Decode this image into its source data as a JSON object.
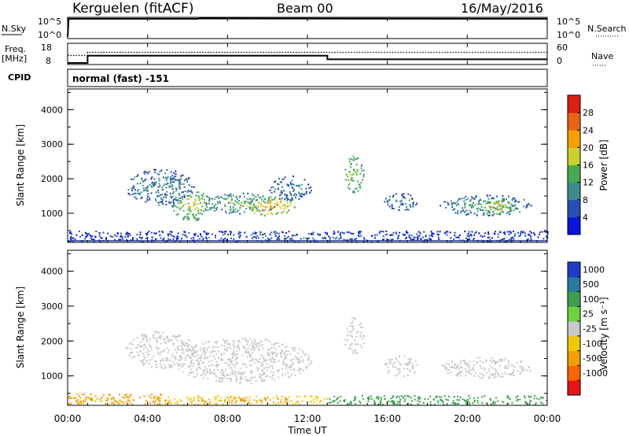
{
  "header": {
    "station": "Kerguelen (fitACF)",
    "beam": "Beam 00",
    "date": "16/May/2016"
  },
  "sky_panel": {
    "left_label": "N.Sky",
    "left_ticks": [
      "10^5",
      "10^0"
    ],
    "right_ticks": [
      "10^5",
      "10^0"
    ],
    "right_label": "N.Search"
  },
  "freq_panel": {
    "left_label_1": "Freq.",
    "left_label_2": "[MHz]",
    "left_ticks": [
      "18",
      "8"
    ],
    "right_ticks": [
      "60",
      "0"
    ],
    "right_label": "Nave"
  },
  "cpid_panel": {
    "label": "CPID",
    "program": "normal (fast) -151"
  },
  "time_axis": {
    "label": "Time UT",
    "ticks": [
      "00:00",
      "04:00",
      "08:00",
      "12:00",
      "16:00",
      "20:00",
      "00:00"
    ]
  },
  "range_axis": {
    "label": "Slant Range [km]",
    "ticks": [
      "1000",
      "2000",
      "3000",
      "4000"
    ]
  },
  "power_colorbar": {
    "label": "Power [dB]",
    "ticks": [
      "4",
      "8",
      "12",
      "16",
      "20",
      "24",
      "28"
    ],
    "colors": [
      "#0a14dc",
      "#2850b4",
      "#3c8c8c",
      "#46aa50",
      "#c8d228",
      "#f5a000",
      "#e66414",
      "#dc1e14"
    ]
  },
  "velocity_colorbar": {
    "label": "Velocity [m s⁻¹]",
    "ticks": [
      "1000",
      "500",
      "100",
      "25",
      "-25",
      "-100",
      "-500",
      "-1000"
    ],
    "colors": [
      "#1e3cc8",
      "#2878a0",
      "#3ca050",
      "#6ed23c",
      "#c8c8c8",
      "#f0c800",
      "#f0a000",
      "#ff6400",
      "#e61414"
    ]
  },
  "chart_data": [
    {
      "type": "line",
      "title": "N.Sky / N.Search",
      "x_unit": "hours UT",
      "x_range": [
        0,
        24
      ],
      "series": [
        {
          "name": "N.Sky",
          "x": [
            0,
            0.05,
            6.5,
            6.6,
            24
          ],
          "y_log10": [
            0,
            5,
            5,
            5.1,
            5
          ]
        }
      ]
    },
    {
      "type": "line",
      "title": "Freq. / Nave",
      "x_unit": "hours UT",
      "x_range": [
        0,
        24
      ],
      "freq_range_mhz": [
        8,
        18
      ],
      "nave_range": [
        0,
        60
      ],
      "series": [
        {
          "name": "Freq.",
          "x": [
            0,
            1.0,
            1.0,
            13.0,
            13.0,
            24
          ],
          "y": [
            8.0,
            8.0,
            12.0,
            12.0,
            10.0,
            10.0
          ]
        },
        {
          "name": "Nave",
          "x": [
            0,
            1.0,
            1.0,
            13.0,
            13.0,
            24
          ],
          "y": [
            25,
            25,
            35,
            35,
            35,
            35
          ]
        }
      ]
    },
    {
      "type": "heatmap",
      "title": "Power",
      "x_unit": "hours UT",
      "x_range": [
        0,
        24
      ],
      "y_unit": "km",
      "y_range": [
        180,
        4600
      ],
      "color_range_db": [
        0,
        32
      ],
      "regions": [
        {
          "t0": 2.9,
          "t1": 6.3,
          "r0": 1250,
          "r1": 2300,
          "value": 10
        },
        {
          "t0": 5.2,
          "t1": 7.2,
          "r0": 800,
          "r1": 1700,
          "value": 18
        },
        {
          "t0": 6.8,
          "t1": 10.5,
          "r0": 1000,
          "r1": 1600,
          "value": 14
        },
        {
          "t0": 8.5,
          "t1": 11.5,
          "r0": 950,
          "r1": 1500,
          "value": 22
        },
        {
          "t0": 10.0,
          "t1": 12.2,
          "r0": 1400,
          "r1": 2100,
          "value": 9
        },
        {
          "t0": 13.8,
          "t1": 14.8,
          "r0": 1600,
          "r1": 2700,
          "value": 17
        },
        {
          "t0": 15.8,
          "t1": 17.5,
          "r0": 1100,
          "r1": 1600,
          "value": 8
        },
        {
          "t0": 18.6,
          "t1": 23.2,
          "r0": 950,
          "r1": 1550,
          "value": 12
        },
        {
          "t0": 20.5,
          "t1": 22.5,
          "r0": 1000,
          "r1": 1400,
          "value": 20
        },
        {
          "t0": 0.0,
          "t1": 24.0,
          "r0": 200,
          "r1": 500,
          "value": 6
        }
      ]
    },
    {
      "type": "heatmap",
      "title": "Velocity",
      "x_unit": "hours UT",
      "x_range": [
        0,
        24
      ],
      "y_unit": "km",
      "y_range": [
        180,
        4600
      ],
      "color_range_ms": [
        -1000,
        1000
      ],
      "regions": [
        {
          "t0": 2.9,
          "t1": 6.3,
          "r0": 1200,
          "r1": 2300,
          "value": 0
        },
        {
          "t0": 5.2,
          "t1": 12.2,
          "r0": 800,
          "r1": 2100,
          "value": 0
        },
        {
          "t0": 13.8,
          "t1": 14.8,
          "r0": 1600,
          "r1": 2700,
          "value": 0
        },
        {
          "t0": 15.8,
          "t1": 17.5,
          "r0": 1000,
          "r1": 1600,
          "value": 0
        },
        {
          "t0": 18.6,
          "t1": 23.2,
          "r0": 950,
          "r1": 1550,
          "value": 0
        },
        {
          "t0": 0.0,
          "t1": 5.0,
          "r0": 200,
          "r1": 500,
          "value": -100
        },
        {
          "t0": 5.0,
          "t1": 13.0,
          "r0": 200,
          "r1": 450,
          "value": -50
        },
        {
          "t0": 13.0,
          "t1": 24.0,
          "r0": 200,
          "r1": 450,
          "value": 100
        }
      ]
    }
  ]
}
